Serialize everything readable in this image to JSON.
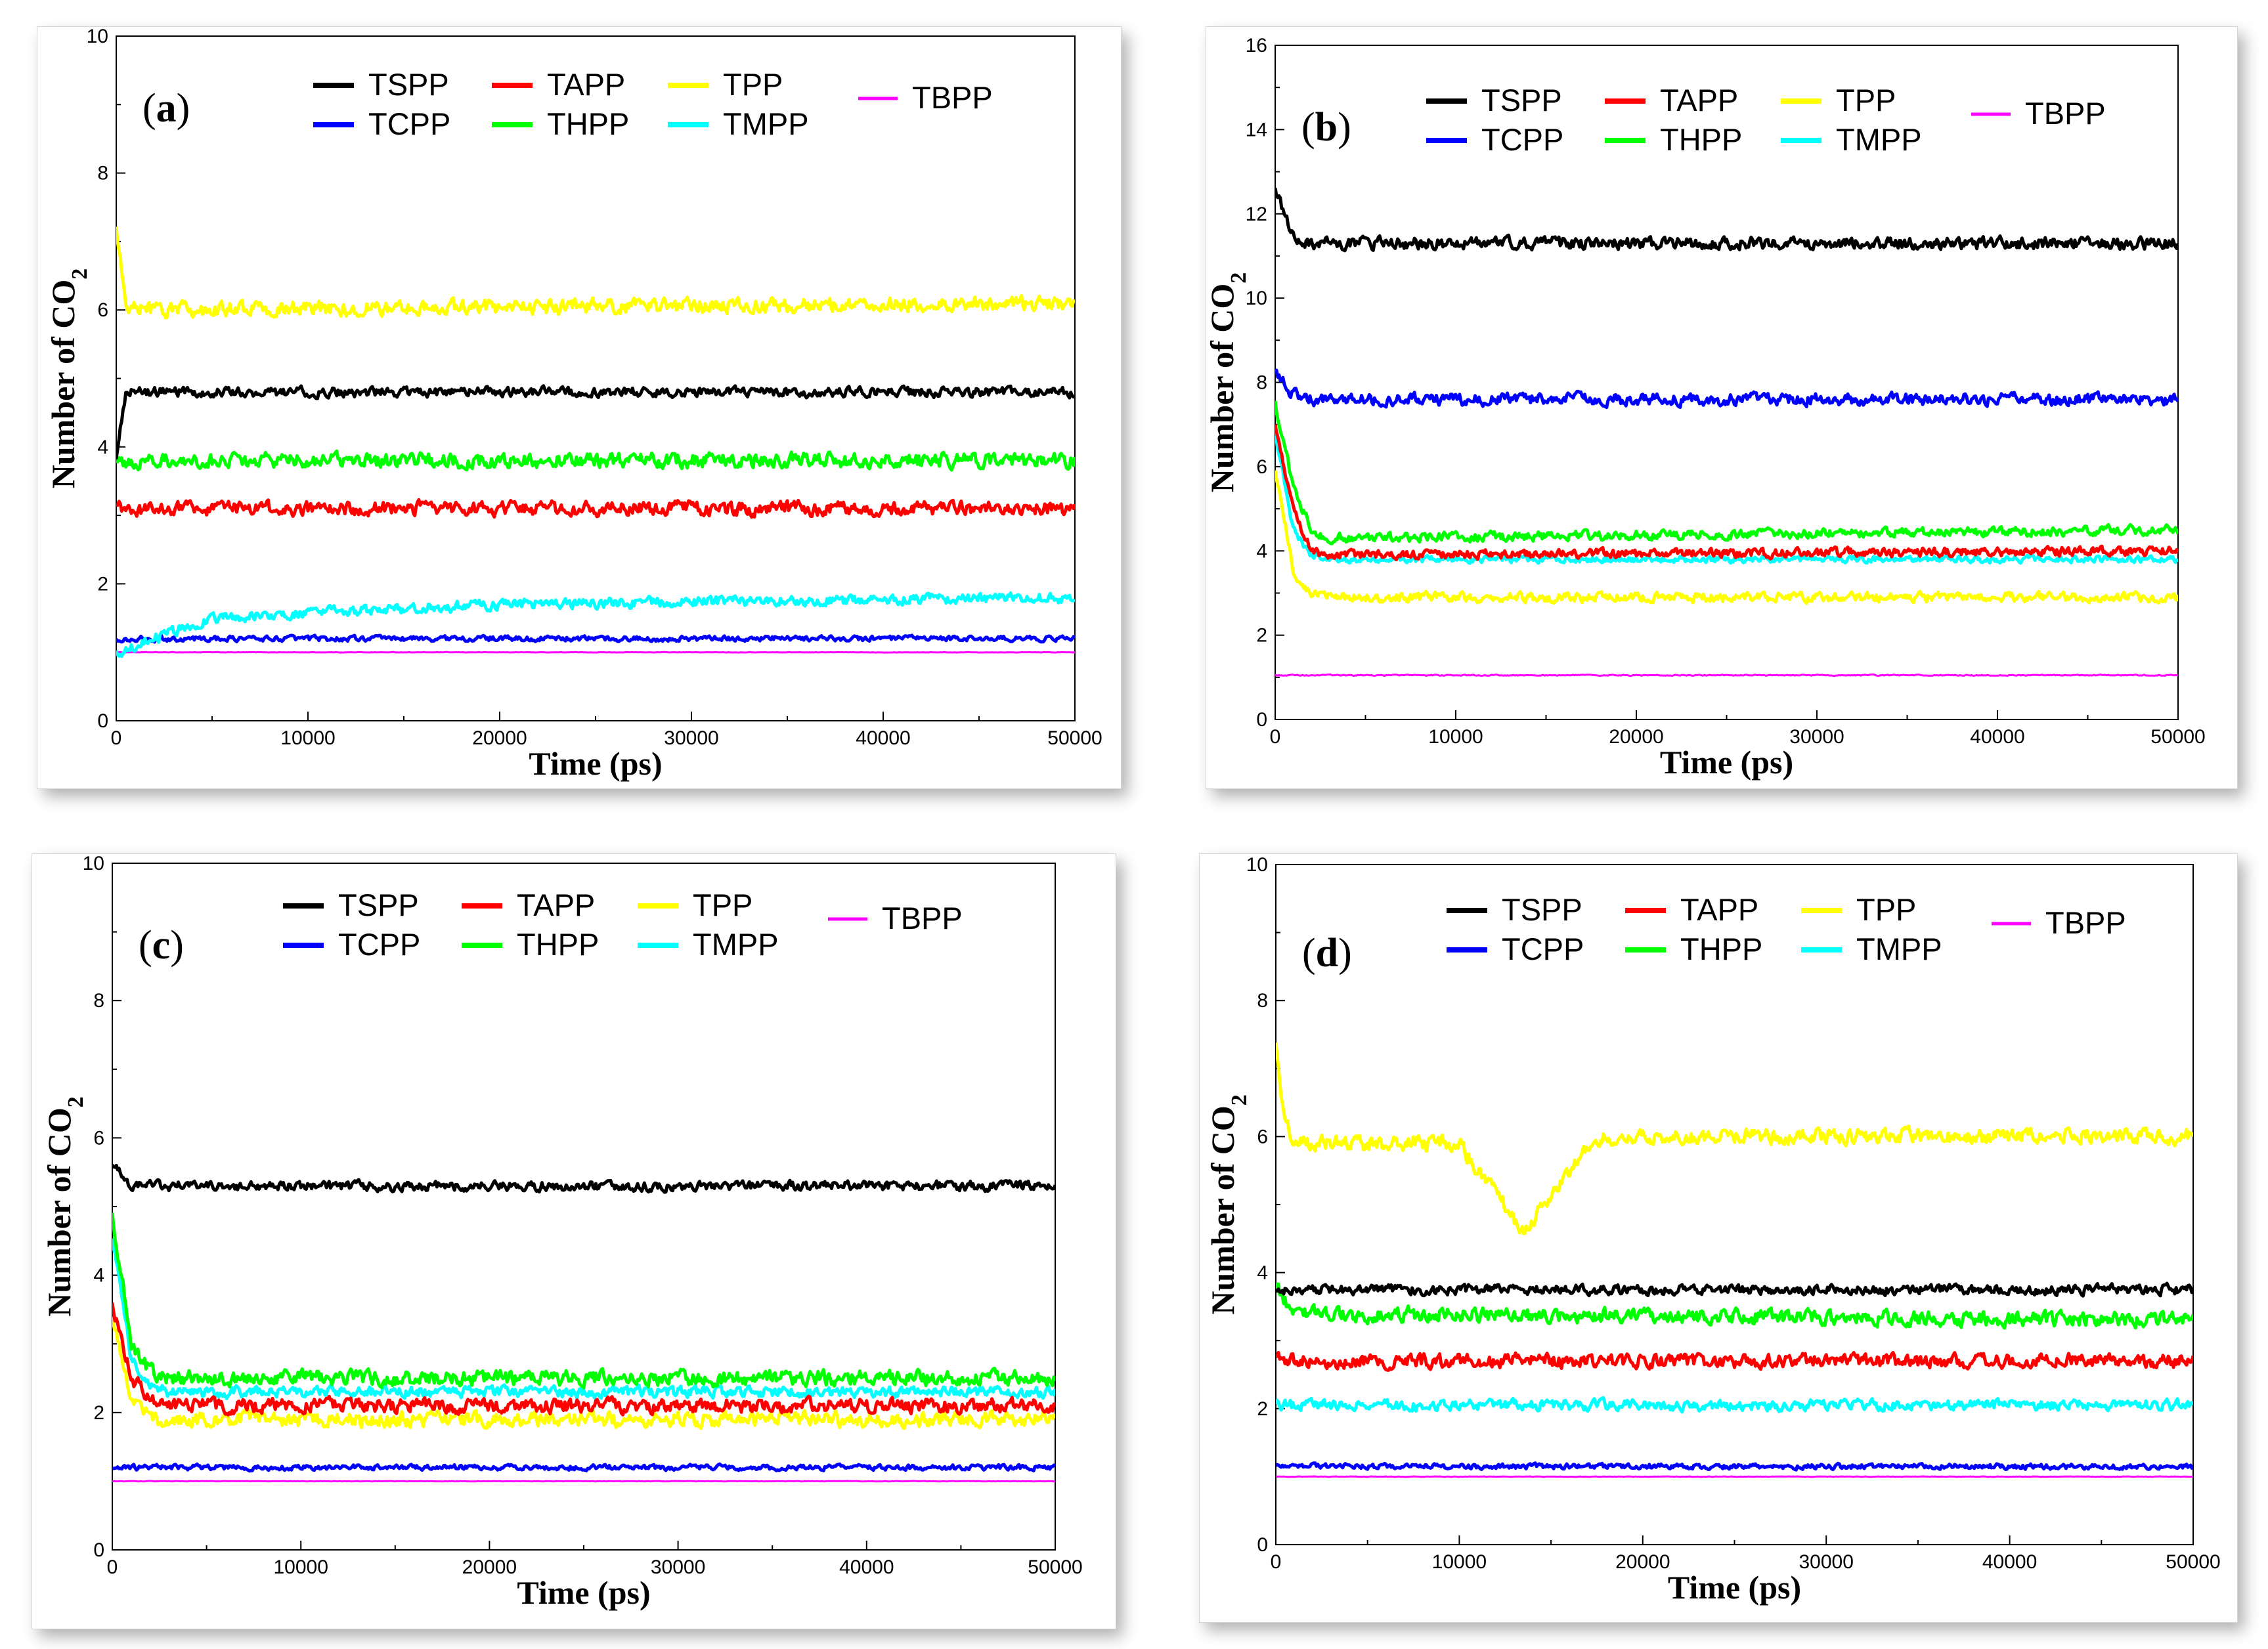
{
  "panels": [
    {
      "id": "a",
      "label": "a",
      "x_ticks": [
        "0",
        "10000",
        "20000",
        "30000",
        "40000",
        "50000"
      ],
      "y_ticks": [
        "0",
        "2",
        "4",
        "6",
        "8",
        "10"
      ]
    },
    {
      "id": "b",
      "label": "b",
      "x_ticks": [
        "0",
        "10000",
        "20000",
        "30000",
        "40000",
        "50000"
      ],
      "y_ticks": [
        "0",
        "2",
        "4",
        "6",
        "8",
        "10",
        "12",
        "14",
        "16"
      ]
    },
    {
      "id": "c",
      "label": "c",
      "x_ticks": [
        "0",
        "10000",
        "20000",
        "30000",
        "40000",
        "50000"
      ],
      "y_ticks": [
        "0",
        "2",
        "4",
        "6",
        "8",
        "10"
      ]
    },
    {
      "id": "d",
      "label": "d",
      "x_ticks": [
        "0",
        "10000",
        "20000",
        "30000",
        "40000",
        "50000"
      ],
      "y_ticks": [
        "0",
        "2",
        "4",
        "6",
        "8",
        "10"
      ]
    }
  ],
  "axis": {
    "xlabel": "Time (ps)",
    "ylabel_main": "Number of CO",
    "ylabel_sub": "2"
  },
  "legend": [
    "TSPP",
    "TAPP",
    "TPP",
    "TBPP",
    "TCPP",
    "THPP",
    "TMPP"
  ],
  "colors": {
    "TSPP": "#000000",
    "TAPP": "#ff0000",
    "TPP": "#ffff00",
    "TBPP": "#ff00ff",
    "TCPP": "#0000ff",
    "THPP": "#00ff00",
    "TMPP": "#00ffff"
  },
  "chart_data": [
    {
      "type": "line",
      "panel": "a",
      "xlim": [
        0,
        50000
      ],
      "ylim": [
        0,
        10
      ],
      "xlabel": "Time (ps)",
      "ylabel": "Number of CO2",
      "series": [
        {
          "name": "TPP",
          "x": [
            0,
            500,
            1000,
            50000
          ],
          "y": [
            7.2,
            6.0,
            6.0,
            6.1
          ]
        },
        {
          "name": "TSPP",
          "x": [
            0,
            500,
            1000,
            50000
          ],
          "y": [
            3.8,
            4.8,
            4.8,
            4.8
          ]
        },
        {
          "name": "THPP",
          "x": [
            0,
            500,
            1000,
            50000
          ],
          "y": [
            3.8,
            3.8,
            3.8,
            3.8
          ]
        },
        {
          "name": "TAPP",
          "x": [
            0,
            500,
            1000,
            50000
          ],
          "y": [
            3.1,
            3.1,
            3.1,
            3.1
          ]
        },
        {
          "name": "TMPP",
          "x": [
            0,
            5000,
            20000,
            50000
          ],
          "y": [
            1.0,
            1.5,
            1.7,
            1.8
          ]
        },
        {
          "name": "TCPP",
          "x": [
            0,
            500,
            1000,
            50000
          ],
          "y": [
            1.2,
            1.2,
            1.2,
            1.2
          ]
        },
        {
          "name": "TBPP",
          "x": [
            0,
            50000
          ],
          "y": [
            1.0,
            1.0
          ]
        }
      ]
    },
    {
      "type": "line",
      "panel": "b",
      "xlim": [
        0,
        50000
      ],
      "ylim": [
        0,
        16
      ],
      "xlabel": "Time (ps)",
      "ylabel": "Number of CO2",
      "series": [
        {
          "name": "TSPP",
          "x": [
            0,
            1000,
            2000,
            50000
          ],
          "y": [
            12.6,
            11.5,
            11.3,
            11.3
          ]
        },
        {
          "name": "TCPP",
          "x": [
            0,
            1000,
            2000,
            50000
          ],
          "y": [
            8.2,
            7.7,
            7.6,
            7.6
          ]
        },
        {
          "name": "THPP",
          "x": [
            0,
            1000,
            2000,
            3000,
            50000
          ],
          "y": [
            7.5,
            5.5,
            4.5,
            4.3,
            4.5
          ]
        },
        {
          "name": "TAPP",
          "x": [
            0,
            1000,
            2000,
            3000,
            50000
          ],
          "y": [
            7.0,
            5.0,
            4.0,
            3.9,
            4.0
          ]
        },
        {
          "name": "TMPP",
          "x": [
            0,
            1000,
            2000,
            3000,
            50000
          ],
          "y": [
            6.8,
            4.5,
            3.9,
            3.8,
            3.8
          ]
        },
        {
          "name": "TPP",
          "x": [
            0,
            1000,
            2000,
            3000,
            50000
          ],
          "y": [
            6.0,
            3.5,
            3.0,
            2.9,
            2.9
          ]
        },
        {
          "name": "TBPP",
          "x": [
            0,
            50000
          ],
          "y": [
            1.05,
            1.05
          ]
        }
      ]
    },
    {
      "type": "line",
      "panel": "c",
      "xlim": [
        0,
        50000
      ],
      "ylim": [
        0,
        10
      ],
      "xlabel": "Time (ps)",
      "ylabel": "Number of CO2",
      "series": [
        {
          "name": "TSPP",
          "x": [
            0,
            1000,
            2000,
            50000
          ],
          "y": [
            5.6,
            5.3,
            5.3,
            5.3
          ]
        },
        {
          "name": "THPP",
          "x": [
            0,
            1000,
            2000,
            3000,
            50000
          ],
          "y": [
            4.9,
            3.0,
            2.6,
            2.5,
            2.5
          ]
        },
        {
          "name": "TMPP",
          "x": [
            0,
            1000,
            2000,
            3000,
            50000
          ],
          "y": [
            4.6,
            2.8,
            2.4,
            2.3,
            2.3
          ]
        },
        {
          "name": "TAPP",
          "x": [
            0,
            1000,
            2000,
            3000,
            50000
          ],
          "y": [
            3.6,
            2.5,
            2.2,
            2.1,
            2.1
          ]
        },
        {
          "name": "TPP",
          "x": [
            0,
            1000,
            2000,
            3000,
            50000
          ],
          "y": [
            3.4,
            2.2,
            1.9,
            1.9,
            1.9
          ]
        },
        {
          "name": "TCPP",
          "x": [
            0,
            50000
          ],
          "y": [
            1.2,
            1.2
          ]
        },
        {
          "name": "TBPP",
          "x": [
            0,
            50000
          ],
          "y": [
            1.0,
            1.0
          ]
        }
      ]
    },
    {
      "type": "line",
      "panel": "d",
      "xlim": [
        0,
        50000
      ],
      "ylim": [
        0,
        10
      ],
      "xlabel": "Time (ps)",
      "ylabel": "Number of CO2",
      "series": [
        {
          "name": "TPP",
          "x": [
            0,
            500,
            1000,
            10000,
            13500,
            16000,
            17500,
            50000
          ],
          "y": [
            7.3,
            6.2,
            5.9,
            5.9,
            4.6,
            5.5,
            6.0,
            6.0
          ]
        },
        {
          "name": "TSPP",
          "x": [
            0,
            50000
          ],
          "y": [
            3.75,
            3.75
          ]
        },
        {
          "name": "THPP",
          "x": [
            0,
            1000,
            50000
          ],
          "y": [
            3.8,
            3.4,
            3.3
          ]
        },
        {
          "name": "TAPP",
          "x": [
            0,
            50000
          ],
          "y": [
            2.7,
            2.7
          ]
        },
        {
          "name": "TMPP",
          "x": [
            0,
            50000
          ],
          "y": [
            2.05,
            2.05
          ]
        },
        {
          "name": "TCPP",
          "x": [
            0,
            50000
          ],
          "y": [
            1.15,
            1.15
          ]
        },
        {
          "name": "TBPP",
          "x": [
            0,
            50000
          ],
          "y": [
            1.0,
            1.0
          ]
        }
      ]
    }
  ]
}
